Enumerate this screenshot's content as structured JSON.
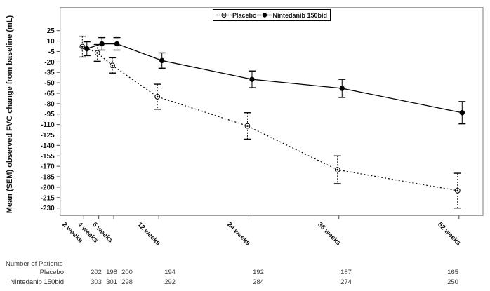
{
  "chart_data": {
    "type": "line",
    "title": "",
    "ylabel": "Mean (SEM) observed FVC change from baseline (mL)",
    "xlabel": "",
    "x_weeks": [
      2,
      4,
      6,
      12,
      24,
      36,
      52
    ],
    "x_tick_labels": [
      "2 weeks",
      "4 weeks",
      "6 weeks",
      "12 weeks",
      "24 weeks",
      "36 weeks",
      "52 weeks"
    ],
    "y_ticks": [
      25,
      10,
      -5,
      -20,
      -35,
      -50,
      -65,
      -80,
      -95,
      -110,
      -125,
      -140,
      -155,
      -170,
      -185,
      -200,
      -215,
      -230
    ],
    "ylim": [
      -240,
      55
    ],
    "grid": "off",
    "legend_position": "top-center",
    "series": [
      {
        "name": "Placebo",
        "line_style": "dashed",
        "marker": "open-circle-dot",
        "color": "#000000",
        "values": [
          2,
          -7,
          -25,
          -70,
          -112,
          -175,
          -205
        ],
        "sem": [
          15,
          12,
          11,
          18,
          19,
          20,
          25
        ]
      },
      {
        "name": "Nintedanib 150bid",
        "line_style": "solid",
        "marker": "filled-circle",
        "color": "#000000",
        "values": [
          -1,
          6,
          6,
          -18,
          -45,
          -58,
          -93
        ],
        "sem": [
          10,
          9,
          9,
          11,
          12,
          13,
          16
        ]
      }
    ]
  },
  "legend": {
    "placebo_label": "Placebo",
    "nintedanib_label": "Nintedanib 150bid"
  },
  "patients_table": {
    "title": "Number of Patients",
    "rows": [
      {
        "label": "Placebo",
        "counts": [
          "202",
          "198",
          "200",
          "194",
          "192",
          "187",
          "165"
        ]
      },
      {
        "label": "Nintedanib 150bid",
        "counts": [
          "303",
          "301",
          "298",
          "292",
          "284",
          "274",
          "250"
        ]
      }
    ]
  },
  "colors": {
    "frame": "#9b9b9b",
    "tick": "#444444",
    "data": "#000000",
    "text": "#111111"
  }
}
